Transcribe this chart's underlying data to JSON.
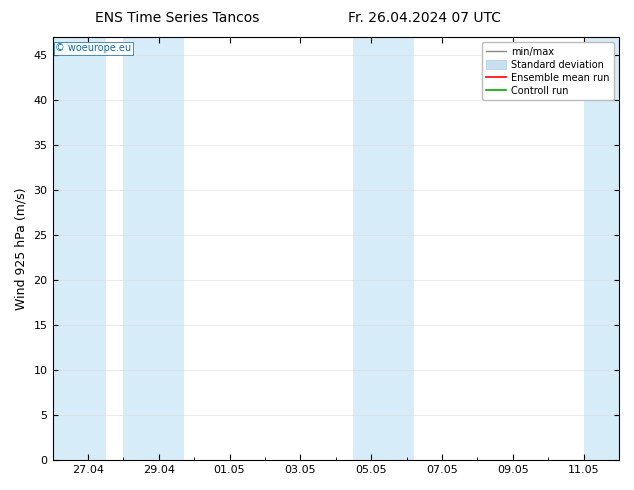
{
  "title_left": "ENS Time Series Tancos",
  "title_right": "Fr. 26.04.2024 07 UTC",
  "ylabel": "Wind 925 hPa (m/s)",
  "ylim": [
    0,
    47
  ],
  "yticks": [
    0,
    5,
    10,
    15,
    20,
    25,
    30,
    35,
    40,
    45
  ],
  "xstart_days": 0,
  "xend_days": 16,
  "xtick_labels": [
    "27.04",
    "29.04",
    "01.05",
    "03.05",
    "05.05",
    "07.05",
    "09.05",
    "11.05"
  ],
  "xtick_offsets": [
    1,
    3,
    5,
    7,
    9,
    11,
    13,
    15
  ],
  "shaded_bands": [
    {
      "xmin": 0.0,
      "xmax": 1.5
    },
    {
      "xmin": 2.0,
      "xmax": 3.7
    },
    {
      "xmin": 8.5,
      "xmax": 10.2
    },
    {
      "xmin": 15.0,
      "xmax": 16.0
    }
  ],
  "band_color": "#d6ecf9",
  "watermark": "© woeurope.eu",
  "watermark_color": "#1a6fa8",
  "background_color": "#ffffff",
  "plot_bg_color": "#ffffff",
  "legend_labels": [
    "min/max",
    "Standard deviation",
    "Ensemble mean run",
    "Controll run"
  ],
  "minmax_color": "#888888",
  "std_color": "#c8dff0",
  "ens_color": "#ff0000",
  "ctrl_color": "#00aa00",
  "title_fontsize": 10,
  "label_fontsize": 9,
  "tick_fontsize": 8,
  "legend_fontsize": 7
}
